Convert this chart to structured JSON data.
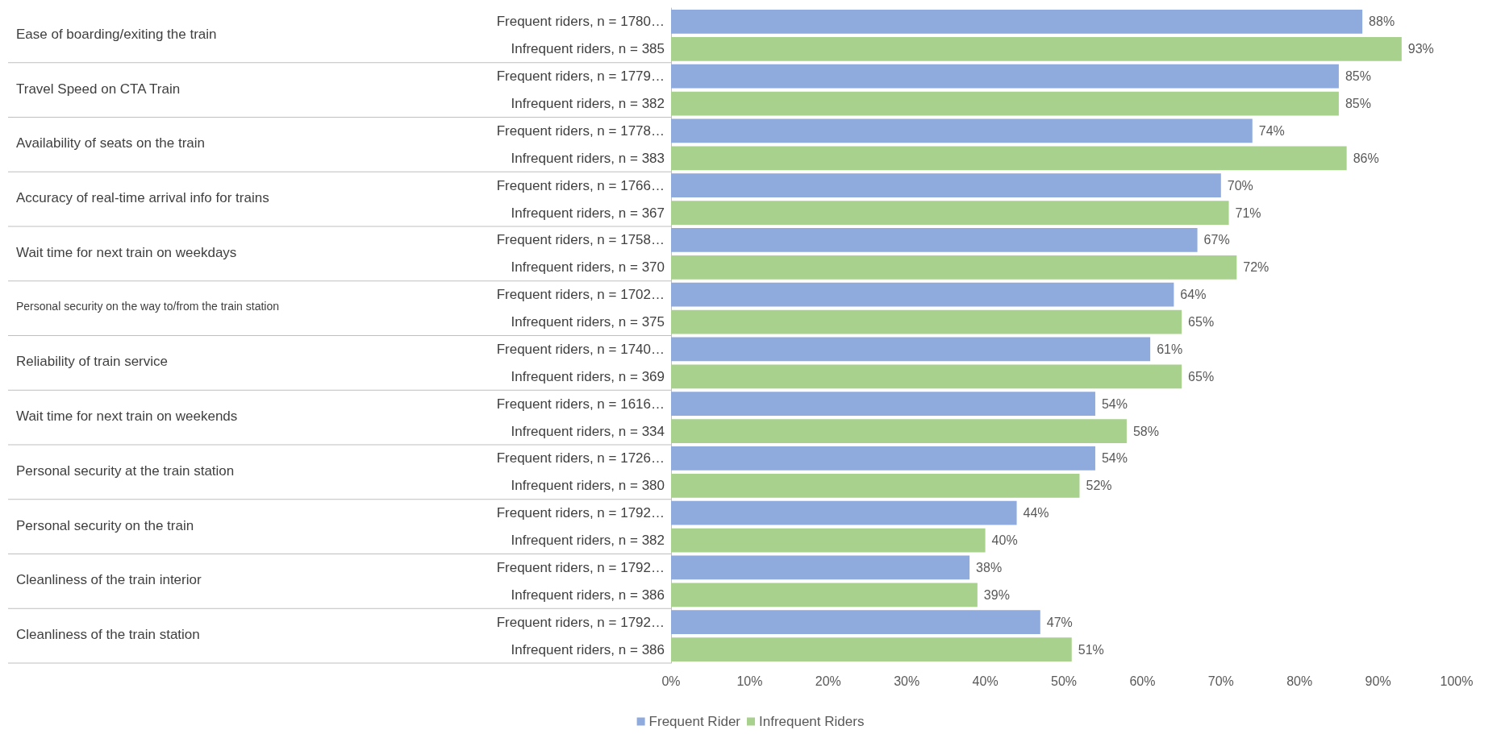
{
  "chart_data": {
    "type": "bar",
    "orientation": "horizontal",
    "categories": [
      "Frequent riders, n = 1780…",
      "Infrequent riders, n = 385",
      "Frequent riders, n = 1779…",
      "Infrequent riders, n = 382",
      "Frequent riders, n = 1778…",
      "Infrequent riders, n = 383",
      "Frequent riders, n = 1766…",
      "Infrequent riders, n = 367",
      "Frequent riders, n = 1758…",
      "Infrequent riders, n = 370",
      "Frequent riders, n = 1702…",
      "Infrequent riders, n = 375",
      "Frequent riders, n = 1740…",
      "Infrequent riders, n = 369",
      "Frequent riders, n = 1616…",
      "Infrequent riders, n = 334",
      "Frequent riders, n = 1726…",
      "Infrequent riders, n = 380",
      "Frequent riders, n = 1792…",
      "Infrequent riders, n = 382",
      "Frequent riders, n = 1792…",
      "Infrequent riders, n = 386",
      "Frequent riders, n = 1792…",
      "Infrequent riders, n = 386"
    ],
    "series": [
      {
        "name": "Frequent Rider",
        "color": "#8faadc",
        "values": [
          88,
          null,
          85,
          null,
          74,
          null,
          70,
          null,
          67,
          null,
          64,
          null,
          61,
          null,
          54,
          null,
          54,
          null,
          44,
          null,
          38,
          null,
          47,
          null
        ],
        "value_labels": [
          "88%",
          null,
          "85%",
          null,
          "74%",
          null,
          "70%",
          null,
          "67%",
          null,
          "64%",
          null,
          "61%",
          null,
          "54%",
          null,
          "54%",
          null,
          "44%",
          null,
          "38%",
          null,
          "47%",
          null
        ]
      },
      {
        "name": "Infrequent Riders",
        "color": "#a9d18e",
        "values": [
          null,
          93,
          null,
          85,
          null,
          86,
          null,
          71,
          null,
          72,
          null,
          65,
          null,
          65,
          null,
          58,
          null,
          52,
          null,
          40,
          null,
          39,
          null,
          51
        ],
        "value_labels": [
          null,
          "93%",
          null,
          "85%",
          null,
          "86%",
          null,
          "71%",
          null,
          "72%",
          null,
          "65%",
          null,
          "65%",
          null,
          "58%",
          null,
          "52%",
          null,
          "40%",
          null,
          "39%",
          null,
          "51%"
        ]
      }
    ],
    "annotations": [
      "Ease of boarding/exiting the train",
      "Travel Speed on CTA Train",
      "Availability of seats on the train",
      "Accuracy of real-time arrival info for trains",
      "Wait time for next train on weekdays",
      "Personal security on the way to/from the train station",
      "Reliability of train service",
      "Wait time for next train on weekends",
      "Personal security at the train station",
      "Personal security on the train",
      "Cleanliness of the train interior",
      "Cleanliness of the train station"
    ],
    "xlim": [
      0,
      100
    ],
    "xticks": [
      {
        "value": 0,
        "label": "0%"
      },
      {
        "value": 10,
        "label": "10%"
      },
      {
        "value": 20,
        "label": "20%"
      },
      {
        "value": 30,
        "label": "30%"
      },
      {
        "value": 40,
        "label": "40%"
      },
      {
        "value": 50,
        "label": "50%"
      },
      {
        "value": 60,
        "label": "60%"
      },
      {
        "value": 70,
        "label": "70%"
      },
      {
        "value": 80,
        "label": "80%"
      },
      {
        "value": 90,
        "label": "90%"
      },
      {
        "value": 100,
        "label": "100%"
      }
    ],
    "legend": "bottom",
    "grid": false
  }
}
